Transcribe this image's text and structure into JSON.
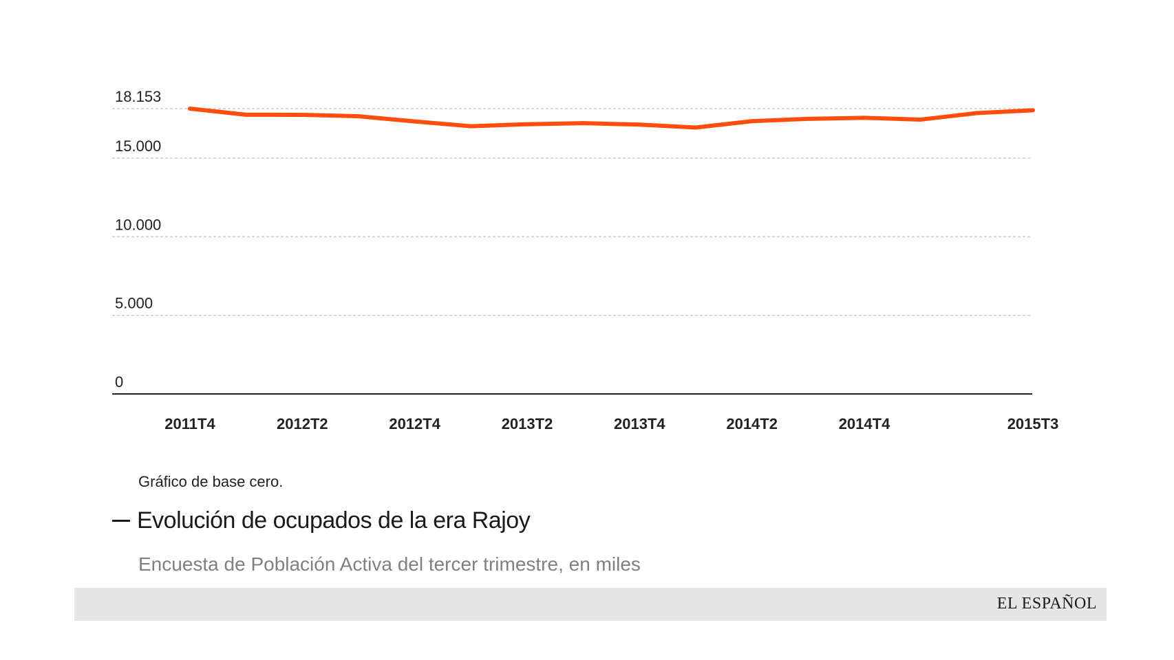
{
  "chart_data": {
    "type": "line",
    "categories": [
      "2011T4",
      "2012T1",
      "2012T2",
      "2012T3",
      "2012T4",
      "2013T1",
      "2013T2",
      "2013T3",
      "2013T4",
      "2014T1",
      "2014T2",
      "2014T3",
      "2014T4",
      "2015T1",
      "2015T2",
      "2015T3"
    ],
    "x_tick_labels": [
      "2011T4",
      "2012T2",
      "2012T4",
      "2013T2",
      "2013T4",
      "2014T2",
      "2014T4",
      "2015T3"
    ],
    "series": [
      {
        "values": [
          18153,
          17765,
          17758,
          17668,
          17339,
          17030,
          17160,
          17230,
          17135,
          16950,
          17353,
          17504,
          17569,
          17455,
          17867,
          18049
        ]
      }
    ],
    "y_ticks": [
      0,
      5000,
      10000,
      15000,
      18153
    ],
    "y_tick_labels": [
      "0",
      "5.000",
      "10.000",
      "15.000",
      "18.153"
    ],
    "ylim": [
      0,
      18153
    ],
    "grid": true,
    "title": "Evolución de ocupados de la era Rajoy",
    "subtitle": "Encuesta de Población Activa del tercer trimestre, en miles",
    "note": "Gráfico de base cero.",
    "line_color": "#ff4d0d"
  },
  "brand": "EL ESPAÑOL"
}
